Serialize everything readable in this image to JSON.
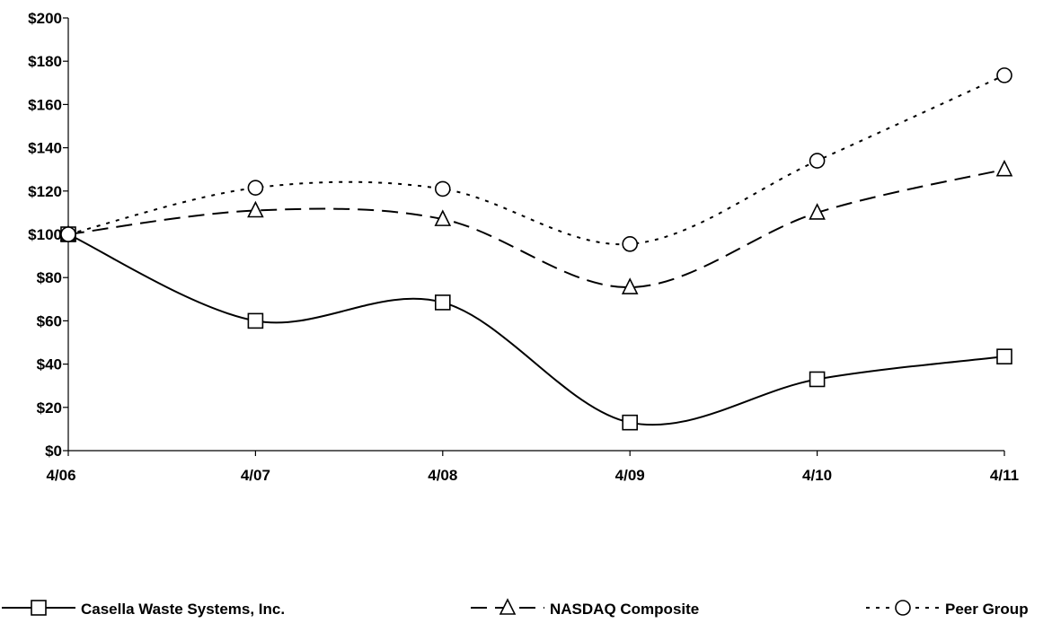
{
  "chart_data": {
    "type": "line",
    "title": "",
    "xlabel": "",
    "ylabel": "",
    "categories": [
      "4/06",
      "4/07",
      "4/08",
      "4/09",
      "4/10",
      "4/11"
    ],
    "ylim": [
      0,
      200
    ],
    "yticks": [
      "$0",
      "$20",
      "$40",
      "$60",
      "$80",
      "$100",
      "$120",
      "$140",
      "$160",
      "$180",
      "$200"
    ],
    "grid": false,
    "legend_position": "bottom",
    "series": [
      {
        "name": "Casella Waste Systems, Inc.",
        "marker": "square",
        "dash": "solid",
        "values": [
          100,
          60,
          68.5,
          13,
          33,
          43.5
        ]
      },
      {
        "name": "NASDAQ Composite",
        "marker": "triangle",
        "dash": "dashed",
        "values": [
          100,
          111,
          107,
          75.5,
          110,
          130
        ]
      },
      {
        "name": "Peer Group",
        "marker": "circle",
        "dash": "dotted",
        "values": [
          100,
          121.5,
          121,
          95.5,
          134,
          173.5
        ]
      }
    ]
  }
}
